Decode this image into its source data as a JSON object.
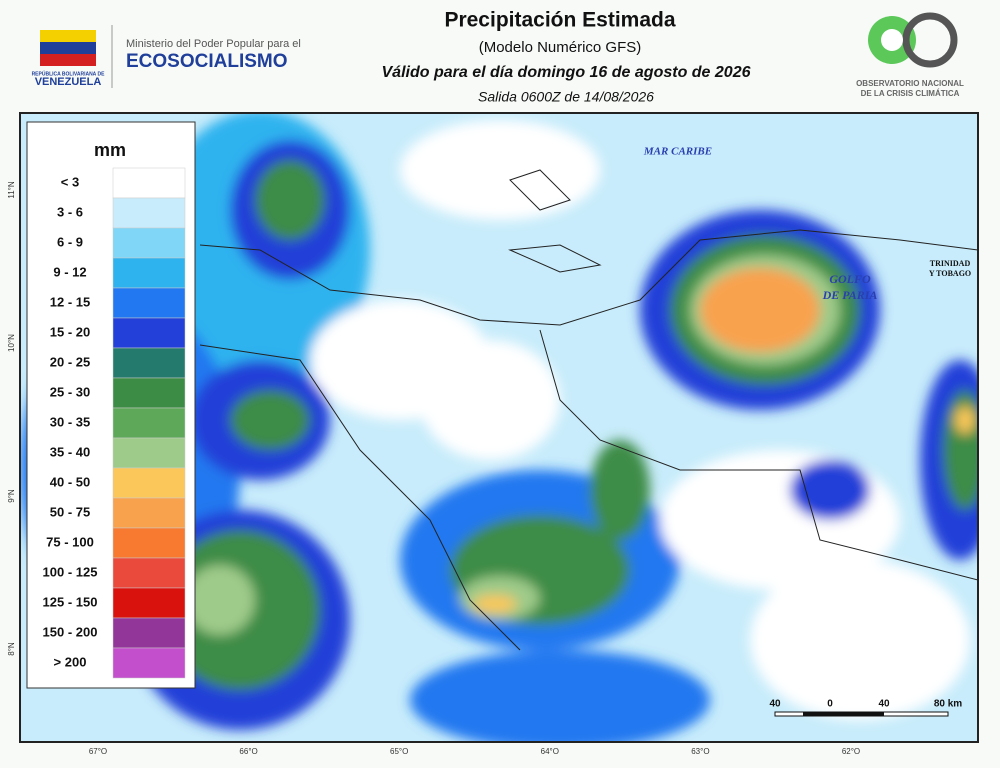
{
  "header": {
    "title": "Precipitación Estimada",
    "subtitle": "(Modelo Numérico GFS)",
    "valid": "Válido para el día domingo 16 de agosto de 2026",
    "run": "Salida 0600Z de 14/08/2026"
  },
  "logos": {
    "country_line1": "REPÚBLICA BOLIVARIANA DE",
    "country_line2": "VENEZUELA",
    "ministry_line1": "Ministerio del Poder Popular para el",
    "ministry_line2": "ECOSOCIALISMO",
    "observatory_line1": "OBSERVATORIO NACIONAL",
    "observatory_line2": "DE LA CRISIS CLIMÁTICA"
  },
  "legend": {
    "unit": "mm",
    "classes": [
      {
        "label": "< 3",
        "color": "#ffffff"
      },
      {
        "label": "3 - 6",
        "color": "#c8ecfb"
      },
      {
        "label": "6 - 9",
        "color": "#7fd6f7"
      },
      {
        "label": "9 - 12",
        "color": "#2fb3ef"
      },
      {
        "label": "12 - 15",
        "color": "#2178f0"
      },
      {
        "label": "15 - 20",
        "color": "#2341d8"
      },
      {
        "label": "20 - 25",
        "color": "#247a6c"
      },
      {
        "label": "25 - 30",
        "color": "#3c8c46"
      },
      {
        "label": "30 - 35",
        "color": "#5ea85a"
      },
      {
        "label": "35 - 40",
        "color": "#9fcb8a"
      },
      {
        "label": "40 - 50",
        "color": "#fbc75a"
      },
      {
        "label": "50 - 75",
        "color": "#f9a24e"
      },
      {
        "label": "75 - 100",
        "color": "#f77a30"
      },
      {
        "label": "100 - 125",
        "color": "#ea4a3c"
      },
      {
        "label": "125 - 150",
        "color": "#d9120e"
      },
      {
        "label": "150 - 200",
        "color": "#93369a"
      },
      {
        "label": "> 200",
        "color": "#c34fcc"
      }
    ]
  },
  "map_labels": {
    "sea": "MAR CARIBE",
    "gulf_line1": "GOLFO",
    "gulf_line2": "DE PARIA",
    "island_line1": "TRINIDAD",
    "island_line2": "Y TOBAGO"
  },
  "longitudes": [
    "67°O",
    "66°O",
    "65°O",
    "64°O",
    "63°O",
    "62°O"
  ],
  "latitudes": [
    "11°N",
    "10°N",
    "9°N",
    "8°N"
  ],
  "scale_bar": [
    "40",
    "0",
    "40",
    "80 km"
  ]
}
